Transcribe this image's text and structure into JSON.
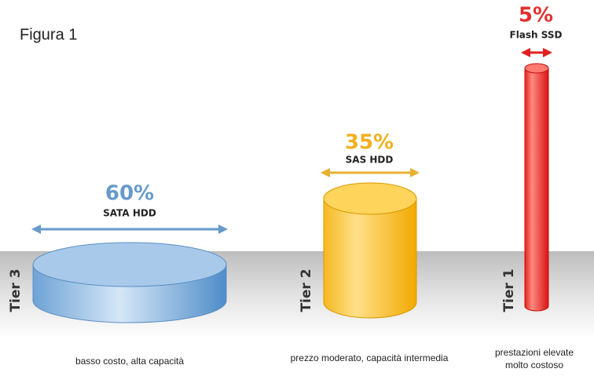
{
  "title": "Figura 1",
  "tiers": [
    {
      "tier": "Tier 3",
      "percent": "60%",
      "medium": "SATA HDD",
      "description": [
        "basso costo, alta capacità"
      ]
    },
    {
      "tier": "Tier 2",
      "percent": "35%",
      "medium": "SAS HDD",
      "description": [
        "prezzo moderato, capacità intermedia"
      ]
    },
    {
      "tier": "Tier 1",
      "percent": "5%",
      "medium": "Flash SSD",
      "description": [
        "prestazioni elevate",
        "molto costoso"
      ]
    }
  ]
}
